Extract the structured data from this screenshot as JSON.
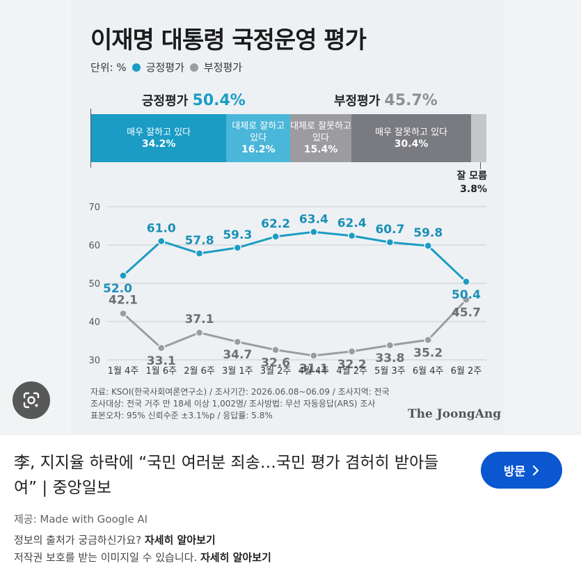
{
  "infographic": {
    "title": "이재명 대통령 국정운영 평가",
    "legend": {
      "unit": "단위: %",
      "positive": "긍정평가",
      "negative": "부정평가"
    },
    "summary": {
      "positive_label": "긍정평가",
      "positive_value": "50.4%",
      "negative_label": "부정평가",
      "negative_value": "45.7%"
    },
    "breakdown": [
      {
        "label": "매우 잘하고 있다",
        "value": "34.2%",
        "num": 34.2,
        "color": "#1a9cc4"
      },
      {
        "label": "대체로 잘하고 있다",
        "value": "16.2%",
        "num": 16.2,
        "color": "#4ab6d9"
      },
      {
        "label": "대체로 잘못하고 있다",
        "value": "15.4%",
        "num": 15.4,
        "color": "#9c9ca0"
      },
      {
        "label": "매우 잘못하고 있다",
        "value": "30.4%",
        "num": 30.4,
        "color": "#7a7b80"
      },
      {
        "label": "잘 모름",
        "value": "3.8%",
        "num": 3.8,
        "color": "#c5c6c9"
      }
    ],
    "footnote": [
      "자료: KSOI(한국사회여론연구소) / 조사기간: 2026.06.08~06.09 / 조사지역: 전국",
      "조사대상: 전국 거주 만 18세 이상 1,002명/ 조사방법: 무선 자동응답(ARS) 조사",
      "표본오차: 95% 신뢰수준 ±3.1%p / 응답률: 5.8%"
    ],
    "brand": "The JoongAng"
  },
  "chart_data": {
    "type": "line",
    "categories": [
      "1월 4주",
      "1월 6주",
      "2월 6주",
      "3월 1주",
      "3월 2주",
      "4월 4주",
      "4월 2주",
      "5월 3주",
      "6월 4주",
      "6월 2주"
    ],
    "ylim": [
      30,
      70
    ],
    "yticks": [
      30,
      40,
      50,
      60,
      70
    ],
    "grid": true,
    "series": [
      {
        "name": "긍정평가",
        "color": "#1a9cc4",
        "values": [
          52.0,
          61.0,
          57.8,
          59.3,
          62.2,
          63.4,
          62.4,
          60.7,
          59.8,
          50.4
        ]
      },
      {
        "name": "부정평가",
        "color": "#9c9ca0",
        "values": [
          42.1,
          33.1,
          37.1,
          34.7,
          32.6,
          31.1,
          32.2,
          33.8,
          35.2,
          45.7
        ]
      }
    ]
  },
  "result": {
    "caption": "李, 지지율 하락에 “국민 여러분 죄송…국민 평가 겸허히 받아들여” | 중앙일보",
    "visit_label": "방문",
    "provider": "제공: Made with Google AI",
    "info_text": "정보의 출처가 궁금하신가요?",
    "info_link": "자세히 알아보기",
    "copyright_text": "저작권 보호를 받는 이미지일 수 있습니다.",
    "copyright_link": "자세히 알아보기"
  }
}
